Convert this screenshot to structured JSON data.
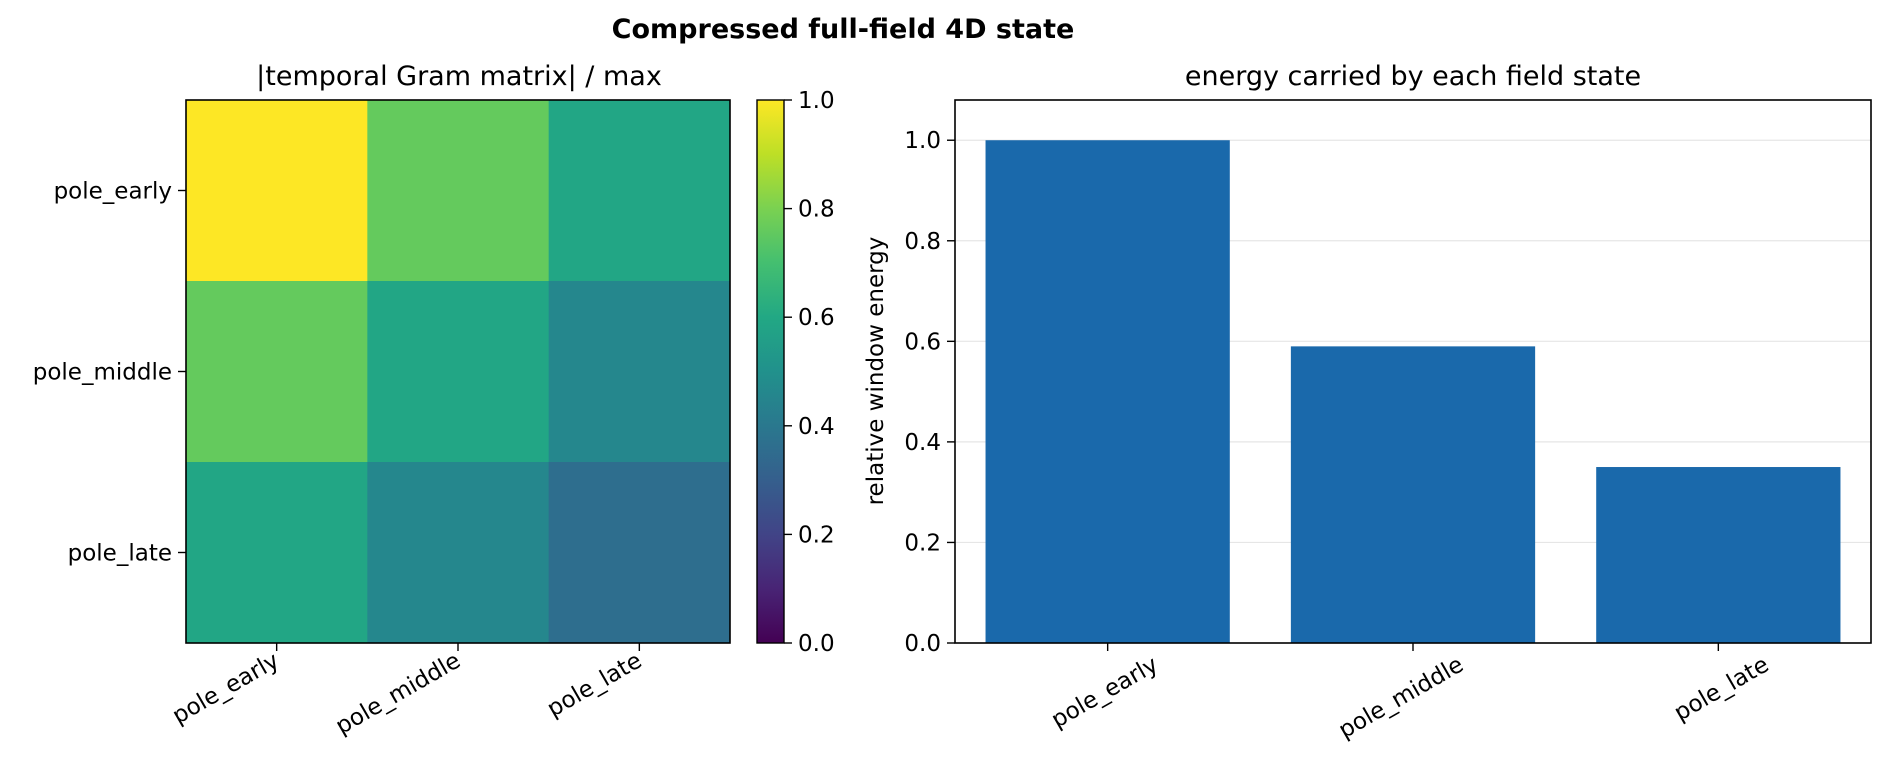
{
  "figure": {
    "title": "Compressed full-field 4D state"
  },
  "chart_data": [
    {
      "type": "heatmap",
      "title": "|temporal Gram matrix| / max",
      "xlabel": "",
      "ylabel": "",
      "x_categories": [
        "pole_early",
        "pole_middle",
        "pole_late"
      ],
      "y_categories": [
        "pole_early",
        "pole_middle",
        "pole_late"
      ],
      "values": [
        [
          1.0,
          0.76,
          0.59
        ],
        [
          0.76,
          0.59,
          0.46
        ],
        [
          0.59,
          0.46,
          0.36
        ]
      ],
      "colormap": "viridis",
      "colorbar": {
        "vmin": 0.0,
        "vmax": 1.0,
        "ticks": [
          "0.0",
          "0.2",
          "0.4",
          "0.6",
          "0.8",
          "1.0"
        ]
      }
    },
    {
      "type": "bar",
      "title": "energy carried by each field state",
      "xlabel": "",
      "ylabel": "relative window energy",
      "categories": [
        "pole_early",
        "pole_middle",
        "pole_late"
      ],
      "values": [
        1.0,
        0.59,
        0.35
      ],
      "ylim": [
        0,
        1.08
      ],
      "yticks": [
        "0.0",
        "0.2",
        "0.4",
        "0.6",
        "0.8",
        "1.0"
      ],
      "grid": "y",
      "bar_color": "#1a69ab"
    }
  ]
}
